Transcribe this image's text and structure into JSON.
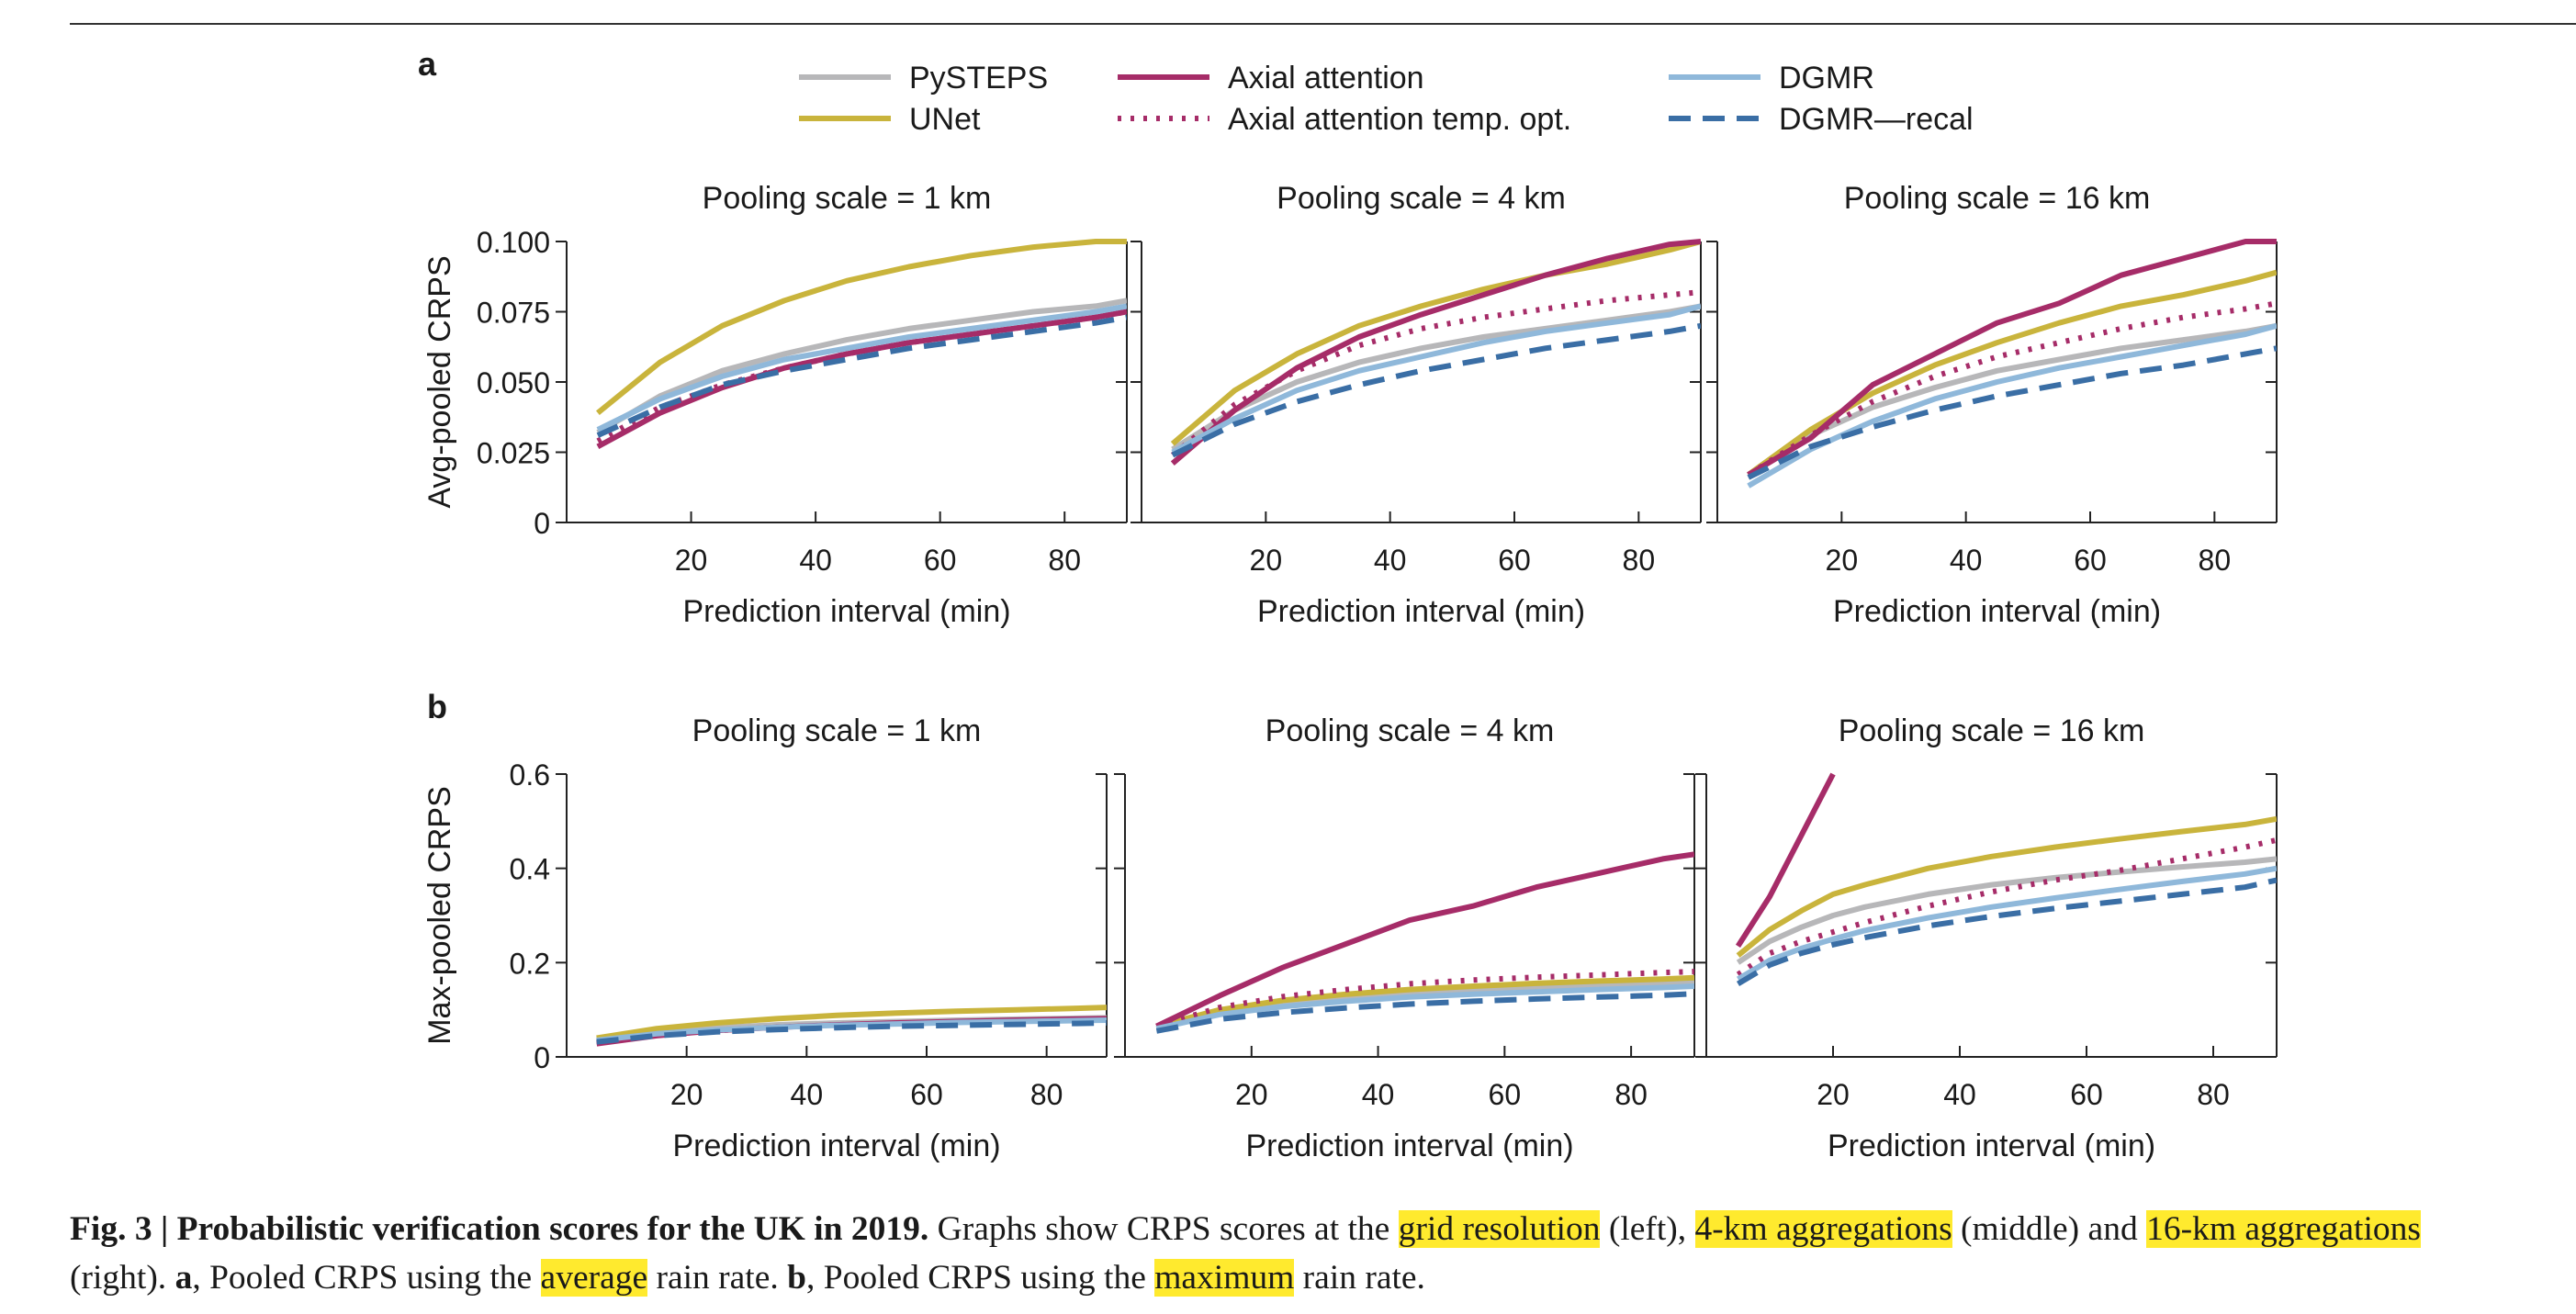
{
  "legend": {
    "entries": [
      {
        "name": "PySTEPS",
        "color": "#b7b7b9",
        "dash": "solid"
      },
      {
        "name": "UNet",
        "color": "#c9b43c",
        "dash": "solid"
      },
      {
        "name": "Axial attention",
        "color": "#a62c68",
        "dash": "solid"
      },
      {
        "name": "Axial attention temp. opt.",
        "color": "#a62c68",
        "dash": "dotted"
      },
      {
        "name": "DGMR",
        "color": "#8fb8da",
        "dash": "solid"
      },
      {
        "name": "DGMR—recal",
        "color": "#3a6ea5",
        "dash": "dashed"
      }
    ]
  },
  "panel_letters": {
    "a": "a",
    "b": "b"
  },
  "chart_data": [
    {
      "type": "line",
      "panel": "a",
      "title": "Pooling scale = 1 km",
      "xlabel": "Prediction interval (min)",
      "ylabel": "Avg-pooled CRPS",
      "xlim": [
        0,
        90
      ],
      "ylim": [
        0,
        0.1
      ],
      "xticks": [
        20,
        40,
        60,
        80
      ],
      "yticks": [
        0,
        0.025,
        0.05,
        0.075,
        0.1
      ],
      "ytick_labels": [
        "0",
        "0.025",
        "0.050",
        "0.075",
        "0.100"
      ],
      "x": [
        5,
        15,
        25,
        35,
        45,
        55,
        65,
        75,
        85,
        90
      ],
      "series": [
        {
          "name": "PySTEPS",
          "values": [
            0.032,
            0.045,
            0.054,
            0.06,
            0.065,
            0.069,
            0.072,
            0.075,
            0.077,
            0.079
          ]
        },
        {
          "name": "UNet",
          "values": [
            0.039,
            0.057,
            0.07,
            0.079,
            0.086,
            0.091,
            0.095,
            0.098,
            0.1,
            0.1
          ]
        },
        {
          "name": "Axial attention",
          "values": [
            0.027,
            0.039,
            0.048,
            0.055,
            0.06,
            0.064,
            0.067,
            0.07,
            0.073,
            0.075
          ]
        },
        {
          "name": "Axial attention temp. opt.",
          "values": [
            0.029,
            0.041,
            0.049,
            0.055,
            0.06,
            0.064,
            0.067,
            0.07,
            0.073,
            0.075
          ]
        },
        {
          "name": "DGMR",
          "values": [
            0.033,
            0.044,
            0.052,
            0.058,
            0.062,
            0.066,
            0.069,
            0.072,
            0.075,
            0.077
          ]
        },
        {
          "name": "DGMR—recal",
          "values": [
            0.031,
            0.041,
            0.049,
            0.054,
            0.058,
            0.062,
            0.065,
            0.068,
            0.071,
            0.073
          ]
        }
      ]
    },
    {
      "type": "line",
      "panel": "a",
      "title": "Pooling scale = 4 km",
      "xlabel": "Prediction interval (min)",
      "ylabel": "",
      "xlim": [
        0,
        90
      ],
      "ylim": [
        0,
        0.1
      ],
      "xticks": [
        20,
        40,
        60,
        80
      ],
      "yticks": [
        0,
        0.025,
        0.05,
        0.075,
        0.1
      ],
      "ytick_labels": [
        "",
        "",
        "",
        "",
        ""
      ],
      "x": [
        5,
        15,
        25,
        35,
        45,
        55,
        65,
        75,
        85,
        90
      ],
      "series": [
        {
          "name": "PySTEPS",
          "values": [
            0.026,
            0.04,
            0.05,
            0.057,
            0.062,
            0.066,
            0.069,
            0.072,
            0.075,
            0.077
          ]
        },
        {
          "name": "UNet",
          "values": [
            0.028,
            0.047,
            0.06,
            0.07,
            0.077,
            0.083,
            0.088,
            0.092,
            0.097,
            0.1
          ]
        },
        {
          "name": "Axial attention",
          "values": [
            0.021,
            0.04,
            0.055,
            0.066,
            0.074,
            0.081,
            0.088,
            0.094,
            0.099,
            0.1
          ]
        },
        {
          "name": "Axial attention temp. opt.",
          "values": [
            0.024,
            0.042,
            0.054,
            0.063,
            0.069,
            0.073,
            0.076,
            0.079,
            0.081,
            0.082
          ]
        },
        {
          "name": "DGMR",
          "values": [
            0.025,
            0.037,
            0.047,
            0.054,
            0.059,
            0.064,
            0.068,
            0.071,
            0.074,
            0.077
          ]
        },
        {
          "name": "DGMR—recal",
          "values": [
            0.024,
            0.035,
            0.043,
            0.049,
            0.054,
            0.058,
            0.062,
            0.065,
            0.068,
            0.07
          ]
        }
      ]
    },
    {
      "type": "line",
      "panel": "a",
      "title": "Pooling scale = 16 km",
      "xlabel": "Prediction interval (min)",
      "ylabel": "",
      "xlim": [
        0,
        90
      ],
      "ylim": [
        0,
        0.1
      ],
      "xticks": [
        20,
        40,
        60,
        80
      ],
      "yticks": [
        0,
        0.025,
        0.05,
        0.075,
        0.1
      ],
      "ytick_labels": [
        "",
        "",
        "",
        "",
        ""
      ],
      "x": [
        5,
        15,
        25,
        35,
        45,
        55,
        65,
        75,
        85,
        90
      ],
      "series": [
        {
          "name": "PySTEPS",
          "values": [
            0.017,
            0.031,
            0.041,
            0.048,
            0.054,
            0.058,
            0.062,
            0.065,
            0.068,
            0.07
          ]
        },
        {
          "name": "UNet",
          "values": [
            0.017,
            0.033,
            0.046,
            0.056,
            0.064,
            0.071,
            0.077,
            0.081,
            0.086,
            0.089
          ]
        },
        {
          "name": "Axial attention",
          "values": [
            0.017,
            0.03,
            0.049,
            0.06,
            0.071,
            0.078,
            0.088,
            0.094,
            0.1,
            0.1
          ]
        },
        {
          "name": "Axial attention temp. opt.",
          "values": [
            0.017,
            0.031,
            0.043,
            0.052,
            0.059,
            0.064,
            0.069,
            0.073,
            0.076,
            0.078
          ]
        },
        {
          "name": "DGMR",
          "values": [
            0.013,
            0.026,
            0.036,
            0.044,
            0.05,
            0.055,
            0.059,
            0.063,
            0.067,
            0.07
          ]
        },
        {
          "name": "DGMR—recal",
          "values": [
            0.016,
            0.027,
            0.034,
            0.04,
            0.045,
            0.049,
            0.053,
            0.056,
            0.06,
            0.062
          ]
        }
      ]
    },
    {
      "type": "line",
      "panel": "b",
      "title": "Pooling scale = 1 km",
      "xlabel": "Prediction interval (min)",
      "ylabel": "Max-pooled CRPS",
      "xlim": [
        0,
        90
      ],
      "ylim": [
        0,
        0.6
      ],
      "xticks": [
        20,
        40,
        60,
        80
      ],
      "yticks": [
        0,
        0.2,
        0.4,
        0.6
      ],
      "ytick_labels": [
        "0",
        "0.2",
        "0.4",
        "0.6"
      ],
      "x": [
        5,
        15,
        25,
        35,
        45,
        55,
        65,
        75,
        85,
        90
      ],
      "series": [
        {
          "name": "PySTEPS",
          "values": [
            0.035,
            0.052,
            0.062,
            0.068,
            0.072,
            0.075,
            0.078,
            0.08,
            0.082,
            0.083
          ]
        },
        {
          "name": "UNet",
          "values": [
            0.04,
            0.06,
            0.072,
            0.081,
            0.088,
            0.093,
            0.097,
            0.1,
            0.103,
            0.105
          ]
        },
        {
          "name": "Axial attention",
          "values": [
            0.028,
            0.045,
            0.056,
            0.063,
            0.068,
            0.072,
            0.075,
            0.078,
            0.08,
            0.081
          ]
        },
        {
          "name": "Axial attention temp. opt.",
          "values": [
            0.03,
            0.046,
            0.056,
            0.063,
            0.068,
            0.071,
            0.074,
            0.076,
            0.078,
            0.079
          ]
        },
        {
          "name": "DGMR",
          "values": [
            0.035,
            0.049,
            0.057,
            0.063,
            0.067,
            0.07,
            0.073,
            0.075,
            0.077,
            0.078
          ]
        },
        {
          "name": "DGMR—recal",
          "values": [
            0.032,
            0.045,
            0.053,
            0.058,
            0.062,
            0.065,
            0.067,
            0.069,
            0.071,
            0.072
          ]
        }
      ]
    },
    {
      "type": "line",
      "panel": "b",
      "title": "Pooling scale = 4 km",
      "xlabel": "Prediction interval (min)",
      "ylabel": "",
      "xlim": [
        0,
        90
      ],
      "ylim": [
        0,
        0.6
      ],
      "xticks": [
        20,
        40,
        60,
        80
      ],
      "yticks": [
        0,
        0.2,
        0.4,
        0.6
      ],
      "ytick_labels": [
        "",
        "",
        "",
        ""
      ],
      "x": [
        5,
        15,
        25,
        35,
        45,
        55,
        65,
        75,
        85,
        90
      ],
      "series": [
        {
          "name": "PySTEPS",
          "values": [
            0.06,
            0.095,
            0.115,
            0.128,
            0.137,
            0.144,
            0.149,
            0.153,
            0.157,
            0.16
          ]
        },
        {
          "name": "UNet",
          "values": [
            0.065,
            0.1,
            0.12,
            0.133,
            0.143,
            0.15,
            0.156,
            0.161,
            0.165,
            0.168
          ]
        },
        {
          "name": "Axial attention",
          "values": [
            0.065,
            0.13,
            0.19,
            0.24,
            0.29,
            0.32,
            0.36,
            0.39,
            0.42,
            0.43
          ]
        },
        {
          "name": "Axial attention temp. opt.",
          "values": [
            0.065,
            0.105,
            0.128,
            0.143,
            0.155,
            0.163,
            0.169,
            0.174,
            0.179,
            0.181
          ]
        },
        {
          "name": "DGMR",
          "values": [
            0.06,
            0.09,
            0.107,
            0.118,
            0.127,
            0.133,
            0.138,
            0.143,
            0.147,
            0.15
          ]
        },
        {
          "name": "DGMR—recal",
          "values": [
            0.055,
            0.08,
            0.094,
            0.104,
            0.112,
            0.118,
            0.123,
            0.127,
            0.131,
            0.134
          ]
        }
      ]
    },
    {
      "type": "line",
      "panel": "b",
      "title": "Pooling scale = 16 km",
      "xlabel": "Prediction interval (min)",
      "ylabel": "",
      "xlim": [
        0,
        90
      ],
      "ylim": [
        0,
        0.6
      ],
      "xticks": [
        20,
        40,
        60,
        80
      ],
      "yticks": [
        0,
        0.2,
        0.4,
        0.6
      ],
      "ytick_labels": [
        "",
        "",
        "",
        ""
      ],
      "x": [
        5,
        10,
        15,
        20,
        25,
        35,
        45,
        55,
        65,
        75,
        85,
        90
      ],
      "series": [
        {
          "name": "PySTEPS",
          "values": [
            0.2,
            0.245,
            0.275,
            0.3,
            0.318,
            0.345,
            0.365,
            0.38,
            0.392,
            0.403,
            0.413,
            0.42
          ]
        },
        {
          "name": "UNet",
          "values": [
            0.215,
            0.27,
            0.31,
            0.345,
            0.365,
            0.4,
            0.425,
            0.445,
            0.462,
            0.478,
            0.493,
            0.505
          ]
        },
        {
          "name": "Axial attention",
          "values": [
            0.235,
            0.34,
            0.47,
            0.6,
            null,
            null,
            null,
            null,
            null,
            null,
            null,
            null
          ]
        },
        {
          "name": "Axial attention temp. opt.",
          "values": [
            0.175,
            0.22,
            0.245,
            0.265,
            0.285,
            0.32,
            0.35,
            0.375,
            0.395,
            0.42,
            0.445,
            0.46
          ]
        },
        {
          "name": "DGMR",
          "values": [
            0.165,
            0.205,
            0.23,
            0.25,
            0.268,
            0.295,
            0.318,
            0.337,
            0.355,
            0.372,
            0.388,
            0.4
          ]
        },
        {
          "name": "DGMR—recal",
          "values": [
            0.155,
            0.195,
            0.22,
            0.238,
            0.253,
            0.278,
            0.298,
            0.315,
            0.33,
            0.345,
            0.36,
            0.375
          ]
        }
      ]
    }
  ],
  "caption": {
    "label": "Fig. 3 | Probabilistic verification scores for the UK in 2019.",
    "t1": " Graphs show CRPS scores at the ",
    "h1": "grid resolution",
    "t2": " (left), ",
    "h2": "4-km aggregations",
    "t3": " (middle) and ",
    "h3": "16-km aggregations",
    "t4": " (right). ",
    "a": "a",
    "t5": ", Pooled CRPS using the ",
    "h4": "average",
    "t6": " rain rate. ",
    "b": "b",
    "t7": ", Pooled CRPS using the ",
    "h5": "maximum",
    "t8": " rain rate."
  }
}
